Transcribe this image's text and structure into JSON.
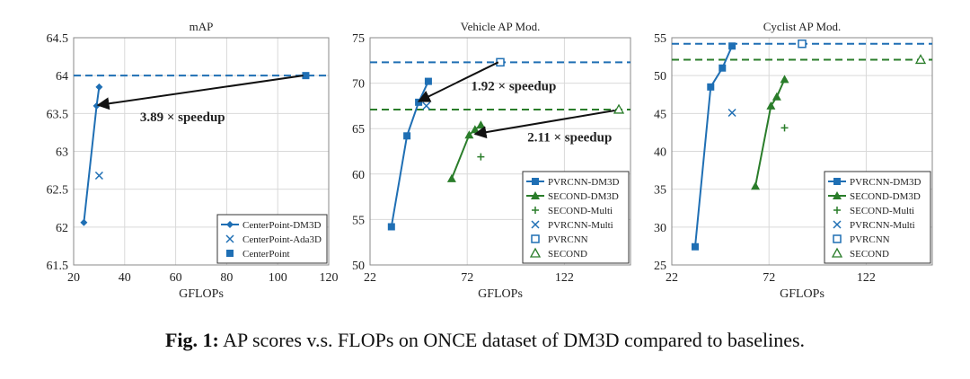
{
  "colors": {
    "blue": "#1f6fb4",
    "green": "#2a7d2a",
    "grid": "#d9d9d9",
    "axis": "#888888",
    "arrow": "#111111"
  },
  "caption": {
    "label": "Fig. 1:",
    "text": "AP scores v.s. FLOPs on ONCE dataset of DM3D compared to baselines."
  },
  "chart_data": [
    {
      "type": "line",
      "title": "mAP",
      "xlabel": "GFLOPs",
      "ylabel": "",
      "xlim": [
        20,
        120
      ],
      "ylim": [
        61.5,
        64.5
      ],
      "xticks": [
        20,
        40,
        60,
        80,
        100,
        120
      ],
      "yticks": [
        61.5,
        62,
        62.5,
        63,
        63.5,
        64,
        64.5
      ],
      "ytick_labels": [
        "61.5",
        "62",
        "62.5",
        "63",
        "63.5",
        "64",
        "64.5"
      ],
      "grid": true,
      "legend_position": "bottom-right",
      "series": [
        {
          "name": "CenterPoint-DM3D",
          "color": "blue",
          "marker": "diamond",
          "line": true,
          "x": [
            24,
            29,
            30
          ],
          "y": [
            62.06,
            63.6,
            63.85
          ]
        },
        {
          "name": "CenterPoint-Ada3D",
          "color": "blue",
          "marker": "x",
          "line": false,
          "x": [
            30
          ],
          "y": [
            62.68
          ]
        },
        {
          "name": "CenterPoint",
          "color": "blue",
          "marker": "square",
          "line": false,
          "x": [
            111
          ],
          "y": [
            64.0
          ]
        }
      ],
      "hlines": [
        {
          "y": 64.0,
          "color": "blue"
        }
      ],
      "annotations": [
        {
          "text": "3.89 × speedup",
          "from": [
            110,
            64.0
          ],
          "to": [
            29.5,
            63.61
          ],
          "text_at": [
            46,
            63.4
          ]
        }
      ]
    },
    {
      "type": "line",
      "title": "Vehicle AP Mod.",
      "xlabel": "GFLOPs",
      "ylabel": "",
      "xlim": [
        22,
        156
      ],
      "ylim": [
        50,
        75
      ],
      "xticks": [
        22,
        72,
        122
      ],
      "yticks": [
        50,
        55,
        60,
        65,
        70,
        75
      ],
      "ytick_labels": [
        "50",
        "55",
        "60",
        "65",
        "70",
        "75"
      ],
      "grid": true,
      "legend_position": "bottom-right",
      "series": [
        {
          "name": "PVRCNN-DM3D",
          "color": "blue",
          "marker": "square",
          "line": true,
          "x": [
            33,
            41,
            47,
            52
          ],
          "y": [
            54.2,
            64.2,
            67.9,
            70.2
          ]
        },
        {
          "name": "SECOND-DM3D",
          "color": "green",
          "marker": "triangle",
          "line": true,
          "x": [
            64,
            73,
            76,
            79
          ],
          "y": [
            59.5,
            64.3,
            64.9,
            65.4
          ]
        },
        {
          "name": "SECOND-Multi",
          "color": "green",
          "marker": "plus",
          "line": false,
          "x": [
            79
          ],
          "y": [
            61.9
          ]
        },
        {
          "name": "PVRCNN-Multi",
          "color": "blue",
          "marker": "x",
          "line": false,
          "x": [
            51
          ],
          "y": [
            67.5
          ]
        },
        {
          "name": "PVRCNN",
          "color": "blue",
          "marker": "square-open",
          "line": false,
          "x": [
            89
          ],
          "y": [
            72.3
          ]
        },
        {
          "name": "SECOND",
          "color": "green",
          "marker": "triangle-open",
          "line": false,
          "x": [
            150
          ],
          "y": [
            67.1
          ]
        }
      ],
      "hlines": [
        {
          "y": 72.3,
          "color": "blue"
        },
        {
          "y": 67.1,
          "color": "green"
        }
      ],
      "annotations": [
        {
          "text": "1.92 × speedup",
          "from": [
            88,
            72.3
          ],
          "to": [
            47,
            68.0
          ],
          "text_at": [
            74,
            69.2
          ]
        },
        {
          "text": "2.11 × speedup",
          "from": [
            148,
            67.0
          ],
          "to": [
            76,
            64.4
          ],
          "text_at": [
            103,
            63.6
          ]
        }
      ]
    },
    {
      "type": "line",
      "title": "Cyclist AP Mod.",
      "xlabel": "GFLOPs",
      "ylabel": "",
      "xlim": [
        22,
        156
      ],
      "ylim": [
        25,
        55
      ],
      "xticks": [
        22,
        72,
        122
      ],
      "yticks": [
        25,
        30,
        35,
        40,
        45,
        50,
        55
      ],
      "ytick_labels": [
        "25",
        "30",
        "35",
        "40",
        "45",
        "50",
        "55"
      ],
      "grid": true,
      "legend_position": "bottom-right",
      "series": [
        {
          "name": "PVRCNN-DM3D",
          "color": "blue",
          "marker": "square",
          "line": true,
          "x": [
            34,
            42,
            48,
            53
          ],
          "y": [
            27.4,
            48.5,
            51.0,
            53.9
          ]
        },
        {
          "name": "SECOND-DM3D",
          "color": "green",
          "marker": "triangle",
          "line": true,
          "x": [
            65,
            73,
            76,
            80
          ],
          "y": [
            35.4,
            46.0,
            47.2,
            49.5
          ]
        },
        {
          "name": "SECOND-Multi",
          "color": "green",
          "marker": "plus",
          "line": false,
          "x": [
            80
          ],
          "y": [
            43.1
          ]
        },
        {
          "name": "PVRCNN-Multi",
          "color": "blue",
          "marker": "x",
          "line": false,
          "x": [
            53
          ],
          "y": [
            45.1
          ]
        },
        {
          "name": "PVRCNN",
          "color": "blue",
          "marker": "square-open",
          "line": false,
          "x": [
            89
          ],
          "y": [
            54.2
          ]
        },
        {
          "name": "SECOND",
          "color": "green",
          "marker": "triangle-open",
          "line": false,
          "x": [
            150
          ],
          "y": [
            52.1
          ]
        }
      ],
      "hlines": [
        {
          "y": 54.2,
          "color": "blue"
        },
        {
          "y": 52.1,
          "color": "green"
        }
      ],
      "annotations": []
    }
  ]
}
